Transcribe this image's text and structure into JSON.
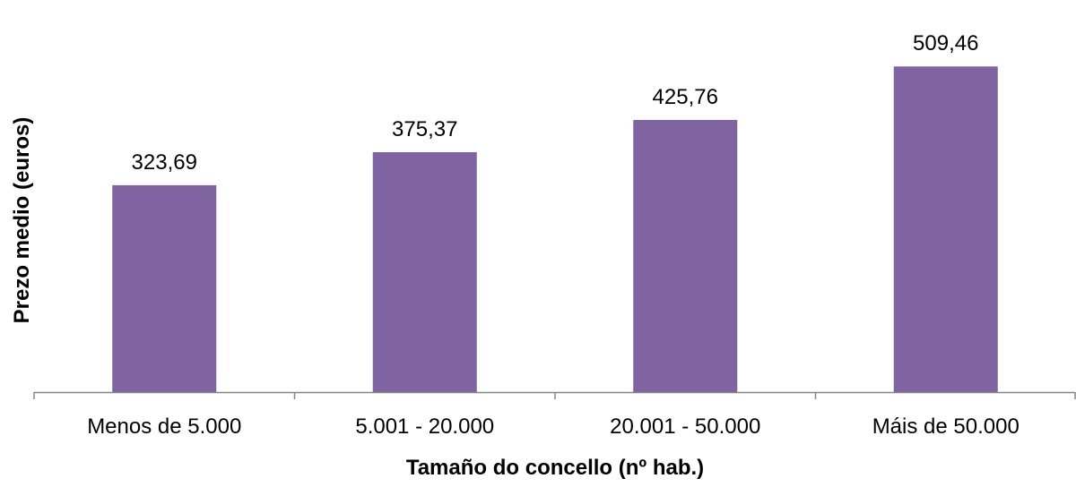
{
  "chart_data": {
    "type": "bar",
    "title": "",
    "xlabel": "Tamaño do concello (nº hab.)",
    "ylabel": "Prezo medio (euros)",
    "categories": [
      "Menos de 5.000",
      "5.001 - 20.000",
      "20.001 - 50.000",
      "Máis de 50.000"
    ],
    "values": [
      323.69,
      375.37,
      425.76,
      509.46
    ],
    "value_labels": [
      "323,69",
      "375,37",
      "425,76",
      "509,46"
    ],
    "ylim": [
      0,
      520
    ],
    "grid": false,
    "legend": "none",
    "colors": {
      "bar": "#8064A2",
      "axis": "#868686"
    }
  }
}
